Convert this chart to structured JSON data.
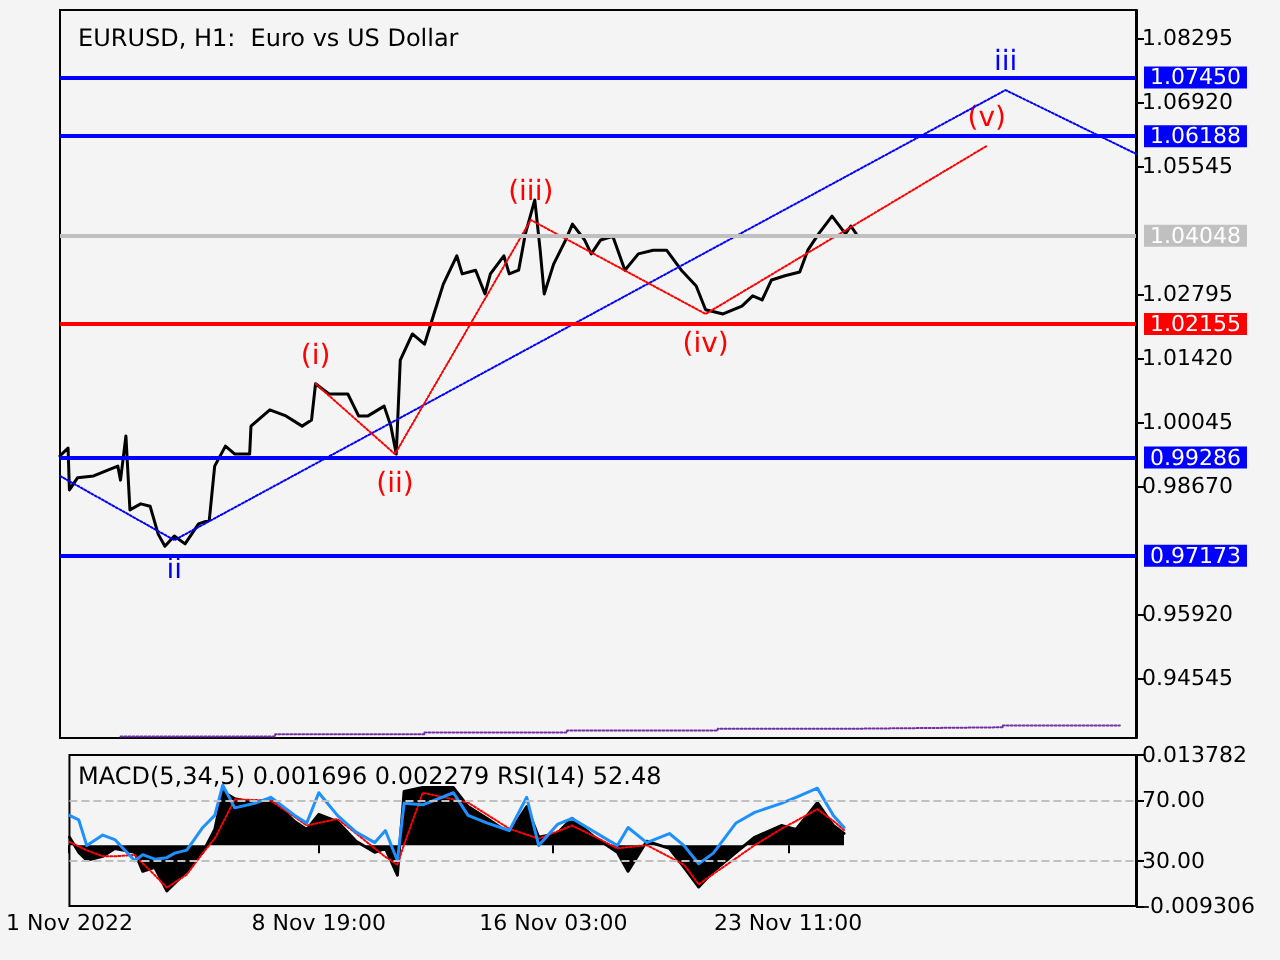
{
  "chart_data": [
    {
      "type": "line",
      "title": "EURUSD, H1:  Euro vs US Dollar",
      "xlim": [
        "2022-11-01T00:00",
        "2022-12-04T08:00"
      ],
      "ylim": [
        0.9326,
        1.089
      ],
      "yticks": [
        1.08295,
        {
          "value": 1.0692,
          "label": "1.06920"
        },
        1.05545,
        1.02795,
        {
          "value": 1.0142,
          "label": "1.01420"
        },
        1.00045,
        {
          "value": 0.9867,
          "label": "0.98670"
        },
        {
          "value": 0.9592,
          "label": "0.95920"
        },
        0.94545
      ],
      "tick_labels": "y",
      "series": [
        {
          "color": "#000000",
          "line_style": "solid",
          "x": [
            "2022-11-01T00:00",
            "2022-11-01T06:00",
            "2022-11-01T07:00",
            "2022-11-01T13:00",
            "2022-11-02T01:00",
            "2022-11-02T12:00",
            "2022-11-02T19:00",
            "2022-11-02T21:00",
            "2022-11-03T01:00",
            "2022-11-03T04:00",
            "2022-11-03T12:00",
            "2022-11-03T19:00",
            "2022-11-04T01:00",
            "2022-11-04T06:00",
            "2022-11-04T13:00",
            "2022-11-04T21:00",
            "2022-11-05T07:00",
            "2022-11-05T15:00",
            "2022-11-05T19:00",
            "2022-11-06T03:00",
            "2022-11-06T10:00",
            "2022-11-06T21:00",
            "2022-11-06T22:00",
            "2022-11-07T12:00",
            "2022-11-08T00:00",
            "2022-11-08T12:00",
            "2022-11-08T19:00",
            "2022-11-08T22:00",
            "2022-11-09T08:00",
            "2022-11-09T22:00",
            "2022-11-10T06:00",
            "2022-11-10T13:00",
            "2022-11-11T01:00",
            "2022-11-11T06:00",
            "2022-11-11T10:00",
            "2022-11-11T13:00",
            "2022-11-11T22:00",
            "2022-11-12T07:00",
            "2022-11-12T14:00",
            "2022-11-12T21:00",
            "2022-11-13T07:00",
            "2022-11-13T11:00",
            "2022-11-13T21:00",
            "2022-11-14T04:00",
            "2022-11-14T08:00",
            "2022-11-14T18:00",
            "2022-11-14T22:00",
            "2022-11-15T05:00",
            "2022-11-15T10:00",
            "2022-11-15T17:00",
            "2022-11-15T21:00",
            "2022-11-16T00:00",
            "2022-11-16T07:00",
            "2022-11-16T16:00",
            "2022-11-16T21:00",
            "2022-11-17T06:00",
            "2022-11-17T11:00",
            "2022-11-17T18:00",
            "2022-11-18T03:00",
            "2022-11-18T12:00",
            "2022-11-18T22:00",
            "2022-11-19T09:00",
            "2022-11-19T19:00",
            "2022-11-20T06:00",
            "2022-11-20T17:00",
            "2022-11-21T00:00",
            "2022-11-21T13:00",
            "2022-11-22T03:00",
            "2022-11-22T11:00",
            "2022-11-22T18:00",
            "2022-11-23T01:00",
            "2022-11-23T11:00",
            "2022-11-23T22:00",
            "2022-11-24T04:00",
            "2022-11-24T12:00",
            "2022-11-24T22:00",
            "2022-11-25T08:00",
            "2022-11-25T12:00",
            "2022-11-25T16:00"
          ],
          "values": [
            0.9932,
            0.9949,
            0.9859,
            0.9885,
            0.9889,
            0.9902,
            0.991,
            0.988,
            0.9975,
            0.9816,
            0.9829,
            0.9824,
            0.9764,
            0.9738,
            0.976,
            0.9743,
            0.9786,
            0.9794,
            0.991,
            0.9953,
            0.9936,
            0.9936,
            0.9996,
            1.0031,
            1.0018,
            0.9996,
            1.0009,
            1.0087,
            1.0065,
            1.0065,
            1.0018,
            1.0018,
            1.0039,
            0.9996,
            0.9936,
            1.0138,
            1.0194,
            1.0172,
            1.0237,
            1.0301,
            1.0362,
            1.0323,
            1.0331,
            1.028,
            1.0323,
            1.0362,
            1.0323,
            1.0331,
            1.0409,
            1.0482,
            1.0374,
            1.028,
            1.0344,
            1.0396,
            1.043,
            1.0396,
            1.0366,
            1.0396,
            1.0404,
            1.0331,
            1.0366,
            1.0374,
            1.0374,
            1.0331,
            1.0297,
            1.0246,
            1.0237,
            1.0254,
            1.0276,
            1.0267,
            1.031,
            1.0319,
            1.0327,
            1.0374,
            1.0409,
            1.0447,
            1.0409,
            1.0426,
            1.0409
          ]
        },
        {
          "color": "#0000ff",
          "line_style": "dotted",
          "x": [
            "2022-11-01T00:00",
            "2022-11-04T13:00",
            "2022-11-30T07:00",
            "2022-12-04T08:00"
          ],
          "values": [
            0.9889,
            0.9751,
            1.0718,
            1.0581
          ]
        },
        {
          "color": "#ff0000",
          "line_style": "dotted",
          "x": [
            "2022-11-08T22:00",
            "2022-11-11T09:00",
            "2022-11-15T14:00",
            "2022-11-21T00:00",
            "2022-11-29T17:00"
          ],
          "values": [
            1.0087,
            0.9936,
            1.0439,
            1.0237,
            1.0598
          ]
        },
        {
          "type": "step",
          "color": "#7030a0",
          "line_style": "dotted",
          "x": [
            "2022-11-02T21:00",
            "2022-11-07T16:00",
            "2022-11-12T07:00",
            "2022-11-16T17:00",
            "2022-11-21T09:00",
            "2022-11-25T16:00",
            "2022-11-30T05:00",
            "2022-12-03T20:00"
          ],
          "values": [
            0.9329,
            0.9334,
            0.9338,
            0.9342,
            0.9346,
            0.9349,
            0.9353,
            0.9353
          ]
        }
      ],
      "ref_lines": [
        {
          "axis": "y",
          "value": 1.0745,
          "label": "1.07450",
          "color": "#0000ff"
        },
        {
          "axis": "y",
          "value": 1.06188,
          "label": "1.06188",
          "color": "#0000ff"
        },
        {
          "axis": "y",
          "value": 1.04048,
          "label": "1.04048",
          "color": "#c0c0c0"
        },
        {
          "axis": "y",
          "value": 1.02155,
          "label": "1.02155",
          "color": "#ff0000"
        },
        {
          "axis": "y",
          "value": 0.99286,
          "label": "0.99286",
          "color": "#0000ff"
        },
        {
          "axis": "y",
          "value": 0.97173,
          "label": "0.97173",
          "color": "#0000ff"
        }
      ],
      "annotations": [
        {
          "text": "ii",
          "x": "2022-11-04T13:00",
          "y": 0.9751
        },
        {
          "text": "(i)",
          "x": "2022-11-08T22:00",
          "y": 1.0087
        },
        {
          "text": "(ii)",
          "x": "2022-11-11T09:00",
          "y": 0.9936
        },
        {
          "text": "(iii)",
          "x": "2022-11-15T14:00",
          "y": 1.0439
        },
        {
          "text": "(iv)",
          "x": "2022-11-21T00:00",
          "y": 1.0237
        },
        {
          "text": "(v)",
          "x": "2022-11-29T17:00",
          "y": 1.0598
        },
        {
          "text": "iii",
          "x": "2022-11-30T07:00",
          "y": 1.0718
        }
      ]
    },
    {
      "type": "line",
      "title": "MACD(5,34,5) 0.001696 0.002279 RSI(14) 52.48",
      "xlim": [
        "2022-11-01T00:00",
        "2022-12-04T08:00"
      ],
      "xticks": [
        {
          "value": "2022-11-01T00:00",
          "label": "1 Nov 2022"
        },
        {
          "value": "2022-11-08T19:00",
          "label": "8 Nov 19:00"
        },
        {
          "value": "2022-11-16T03:00",
          "label": "16 Nov 03:00"
        },
        {
          "value": "2022-11-23T11:00",
          "label": "23 Nov 11:00"
        }
      ],
      "ylim": [
        -0.009306,
        0.013782
      ],
      "yticks": [
        0.013782,
        -0.009306
      ],
      "y2lim": [
        0,
        100
      ],
      "y2ticks": [
        {
          "value": 70,
          "label": "70.00"
        },
        {
          "value": 30,
          "label": "30.00"
        }
      ],
      "x": [
        "2022-11-01T00:00",
        "2022-11-01T07:00",
        "2022-11-01T13:00",
        "2022-11-02T01:00",
        "2022-11-02T10:00",
        "2022-11-03T01:00",
        "2022-11-03T07:00",
        "2022-11-03T16:00",
        "2022-11-04T01:00",
        "2022-11-04T07:00",
        "2022-11-04T16:00",
        "2022-11-05T04:00",
        "2022-11-05T13:00",
        "2022-11-05T19:00",
        "2022-11-06T04:00",
        "2022-11-06T19:00",
        "2022-11-07T07:00",
        "2022-11-08T01:00",
        "2022-11-08T10:00",
        "2022-11-08T19:00",
        "2022-11-09T09:00",
        "2022-11-09T23:00",
        "2022-11-10T13:00",
        "2022-11-10T21:00",
        "2022-11-11T06:00",
        "2022-11-11T11:00",
        "2022-11-12T01:00",
        "2022-11-13T00:00",
        "2022-11-13T11:00",
        "2022-11-14T01:00",
        "2022-11-14T18:00",
        "2022-11-15T07:00",
        "2022-11-15T16:00",
        "2022-11-16T06:00",
        "2022-11-16T17:00",
        "2022-11-17T10:00",
        "2022-11-18T03:00",
        "2022-11-18T11:00",
        "2022-11-19T01:00",
        "2022-11-19T18:00",
        "2022-11-20T05:00",
        "2022-11-20T16:00",
        "2022-11-21T03:00",
        "2022-11-21T20:00",
        "2022-11-22T10:00",
        "2022-11-23T06:00",
        "2022-11-23T17:00",
        "2022-11-24T09:00",
        "2022-11-24T21:00",
        "2022-11-25T05:00"
      ],
      "series": [
        {
          "type": "area",
          "color": "#000000",
          "values": [
            0.0012,
            -0.0011,
            -0.0023,
            -0.0017,
            -0.0005,
            -0.0011,
            -0.004,
            -0.0034,
            -0.007,
            -0.0058,
            -0.004,
            -0.0011,
            0.0024,
            0.0082,
            0.0071,
            0.0065,
            0.0071,
            0.0036,
            0.0024,
            0.0047,
            0.0036,
            0.0006,
            -0.0011,
            -0.0005,
            -0.0046,
            0.0082,
            0.0088,
            0.0088,
            0.0059,
            0.0041,
            0.0018,
            0.0059,
            0.0012,
            0.0018,
            0.0041,
            0.0012,
            -0.0011,
            -0.004,
            0.0006,
            -0.0005,
            -0.0034,
            -0.0064,
            -0.004,
            -0.0011,
            0.0012,
            0.003,
            0.0024,
            0.0065,
            0.003,
            0.0018
          ]
        },
        {
          "color": "#ff0000",
          "line_style": "dotted",
          "values": [
            0.0005,
            -0.0002,
            -0.0008,
            -0.0017,
            -0.0017,
            -0.0015,
            -0.0028,
            -0.0046,
            -0.0065,
            -0.0057,
            -0.0045,
            -0.0012,
            0.001,
            0.0034,
            0.007,
            0.0069,
            0.0068,
            0.0043,
            0.003,
            0.0034,
            0.004,
            0.0018,
            -0.0005,
            -0.0018,
            -0.003,
            0.0001,
            0.008,
            0.007,
            0.0065,
            0.0047,
            0.0025,
            0.0016,
            0.001,
            0.0021,
            0.003,
            0.0013,
            -0.0005,
            -0.0003,
            0,
            -0.0018,
            -0.003,
            -0.006,
            -0.0044,
            -0.002,
            0,
            0.0025,
            0.0037,
            0.0055,
            0.0037,
            0.0023
          ]
        },
        {
          "color": "#1e90ff",
          "line_style": "solid",
          "axis": "y2",
          "values": [
            60,
            57,
            40,
            47,
            44,
            30,
            34,
            31,
            32,
            35,
            37,
            52,
            60,
            80,
            65,
            68,
            72,
            60,
            55,
            75,
            60,
            49,
            42,
            50,
            30,
            68,
            67,
            75,
            60,
            55,
            50,
            72,
            40,
            54,
            58,
            49,
            40,
            52,
            42,
            48,
            40,
            28,
            35,
            55,
            62,
            68,
            72,
            78,
            60,
            52
          ]
        }
      ],
      "ref_lines": [
        {
          "axis": "y2",
          "value": 70,
          "color": "#c0c0c0",
          "line_style": "dashed"
        },
        {
          "axis": "y2",
          "value": 30,
          "color": "#c0c0c0",
          "line_style": "dashed"
        }
      ]
    }
  ]
}
